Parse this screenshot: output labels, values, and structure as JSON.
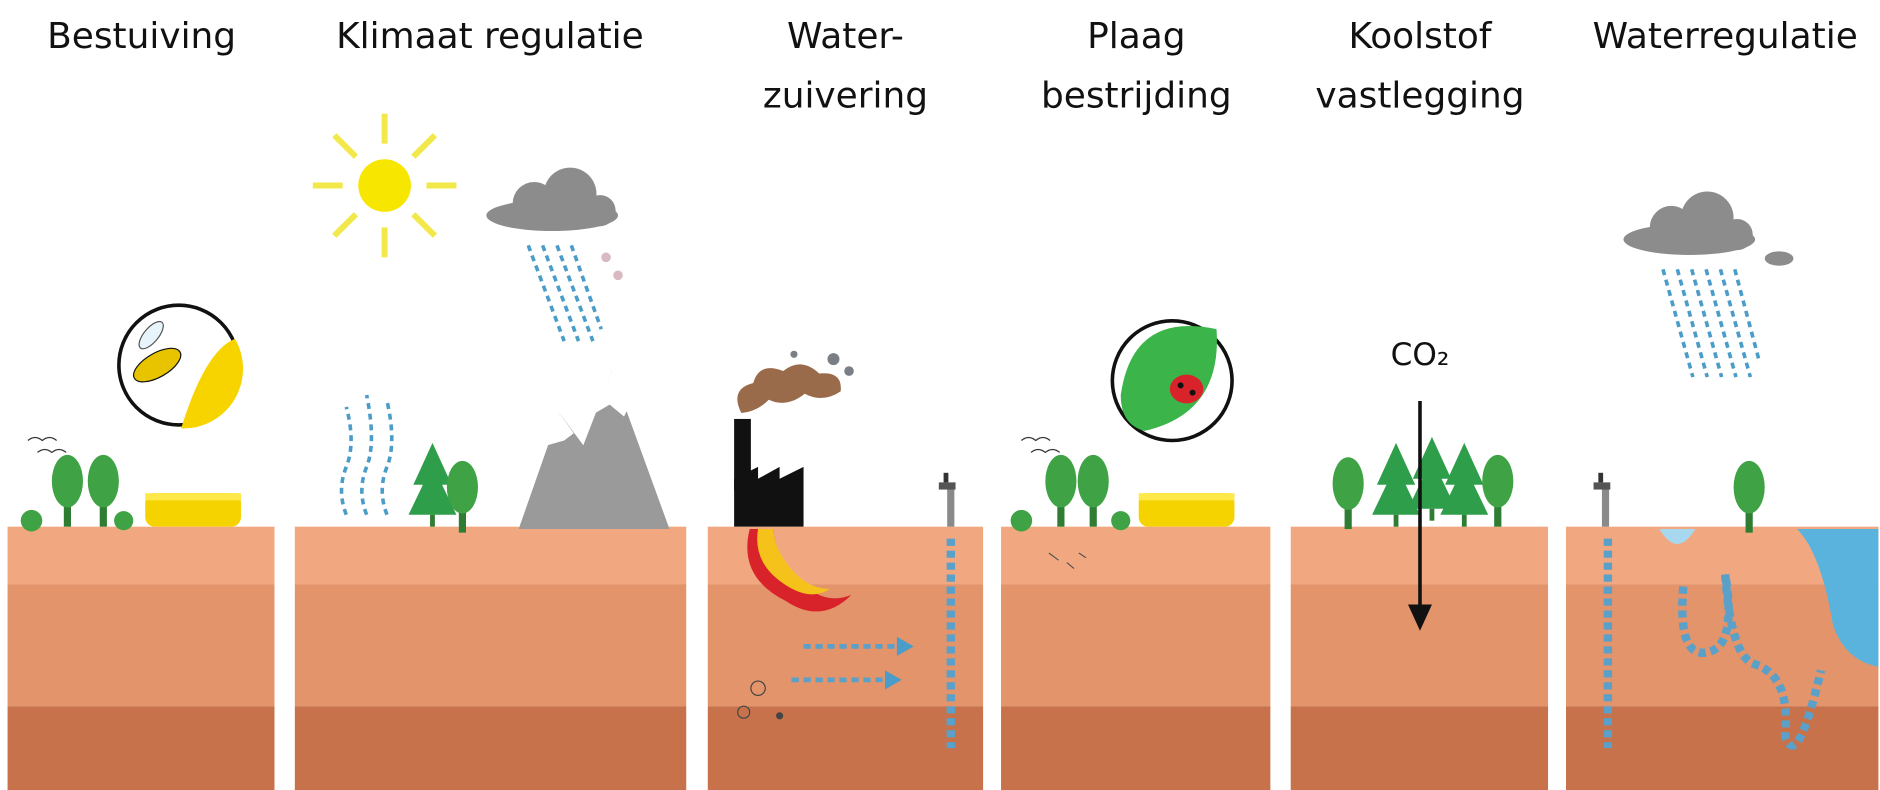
{
  "panels": [
    {
      "title": [
        "Bestuiving"
      ]
    },
    {
      "title": [
        "Klimaat regulatie"
      ]
    },
    {
      "title": [
        "Water-",
        "zuivering"
      ]
    },
    {
      "title": [
        "Plaag",
        "bestrijding"
      ]
    },
    {
      "title": [
        "Koolstof",
        "vastlegging"
      ],
      "label": "CO₂"
    },
    {
      "title": [
        "Waterregulatie"
      ]
    }
  ]
}
